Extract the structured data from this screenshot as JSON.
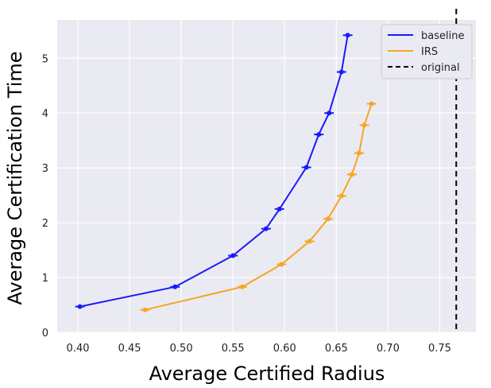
{
  "chart_data": {
    "type": "line",
    "title": "",
    "xlabel": "Average Certified Radius",
    "ylabel": "Average Certification Time",
    "xlim": [
      0.38,
      0.785
    ],
    "ylim": [
      0,
      5.7
    ],
    "xticks": [
      "0.40",
      "0.45",
      "0.50",
      "0.55",
      "0.60",
      "0.65",
      "0.70",
      "0.75"
    ],
    "yticks": [
      "0",
      "1",
      "2",
      "3",
      "4",
      "5"
    ],
    "grid": true,
    "legend_position": "top-right",
    "series": [
      {
        "name": "baseline",
        "color": "#1a1aff",
        "style": "solid",
        "markers": "errorbar",
        "x": [
          0.402,
          0.494,
          0.55,
          0.582,
          0.595,
          0.621,
          0.633,
          0.643,
          0.655,
          0.661
        ],
        "y": [
          0.47,
          0.83,
          1.4,
          1.89,
          2.25,
          3.01,
          3.61,
          4.0,
          4.75,
          5.42
        ]
      },
      {
        "name": "IRS",
        "color": "#f5a623",
        "style": "solid",
        "markers": "errorbar",
        "x": [
          0.465,
          0.559,
          0.597,
          0.624,
          0.642,
          0.655,
          0.665,
          0.672,
          0.677,
          0.684
        ],
        "y": [
          0.41,
          0.83,
          1.24,
          1.66,
          2.07,
          2.49,
          2.88,
          3.27,
          3.78,
          4.17
        ]
      },
      {
        "name": "original",
        "color": "#000000",
        "style": "dashed",
        "vertical_line_x": 0.766
      }
    ]
  }
}
